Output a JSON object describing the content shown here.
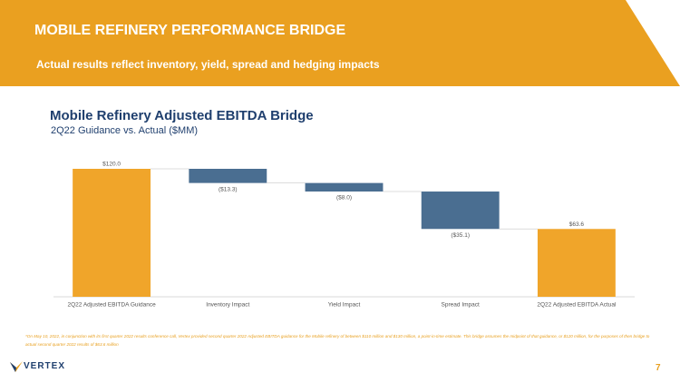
{
  "header": {
    "title": "MOBILE REFINERY PERFORMANCE BRIDGE",
    "subtitle": "Actual results reflect inventory, yield, spread and hedging impacts"
  },
  "chart_data": {
    "type": "waterfall",
    "title": "Mobile Refinery Adjusted EBITDA Bridge",
    "subtitle": "2Q22 Guidance vs. Actual ($MM)",
    "categories": [
      "2Q22 Adjusted EBITDA Guidance",
      "Inventory Impact",
      "Yield Impact",
      "Spread Impact",
      "2Q22 Adjusted EBITDA Actual"
    ],
    "values": [
      120.0,
      -13.3,
      -8.0,
      -35.1,
      63.6
    ],
    "value_labels": [
      "$120.0",
      "($13.3)",
      "($8.0)",
      "($35.1)",
      "$63.6"
    ],
    "measures": [
      "absolute",
      "relative",
      "relative",
      "relative",
      "total"
    ],
    "colors": [
      "#f0a52a",
      "#4a6e91",
      "#4a6e91",
      "#4a6e91",
      "#f0a52a"
    ],
    "ylim": [
      0,
      120
    ]
  },
  "footnote": "*On May 10, 2022, in conjunction with its first quarter 2022 results conference call, Vertex provided second quarter 2022 Adjusted EBITDA guidance for the Mobile refinery of between $110 million and $130 million, a point-in-time estimate. This bridge assumes the midpoint of that guidance, or $120 million, for the purposes of then bridge to actual second quarter 2022 results of $63.6 million",
  "logo": "VERTEX",
  "page_number": "7"
}
